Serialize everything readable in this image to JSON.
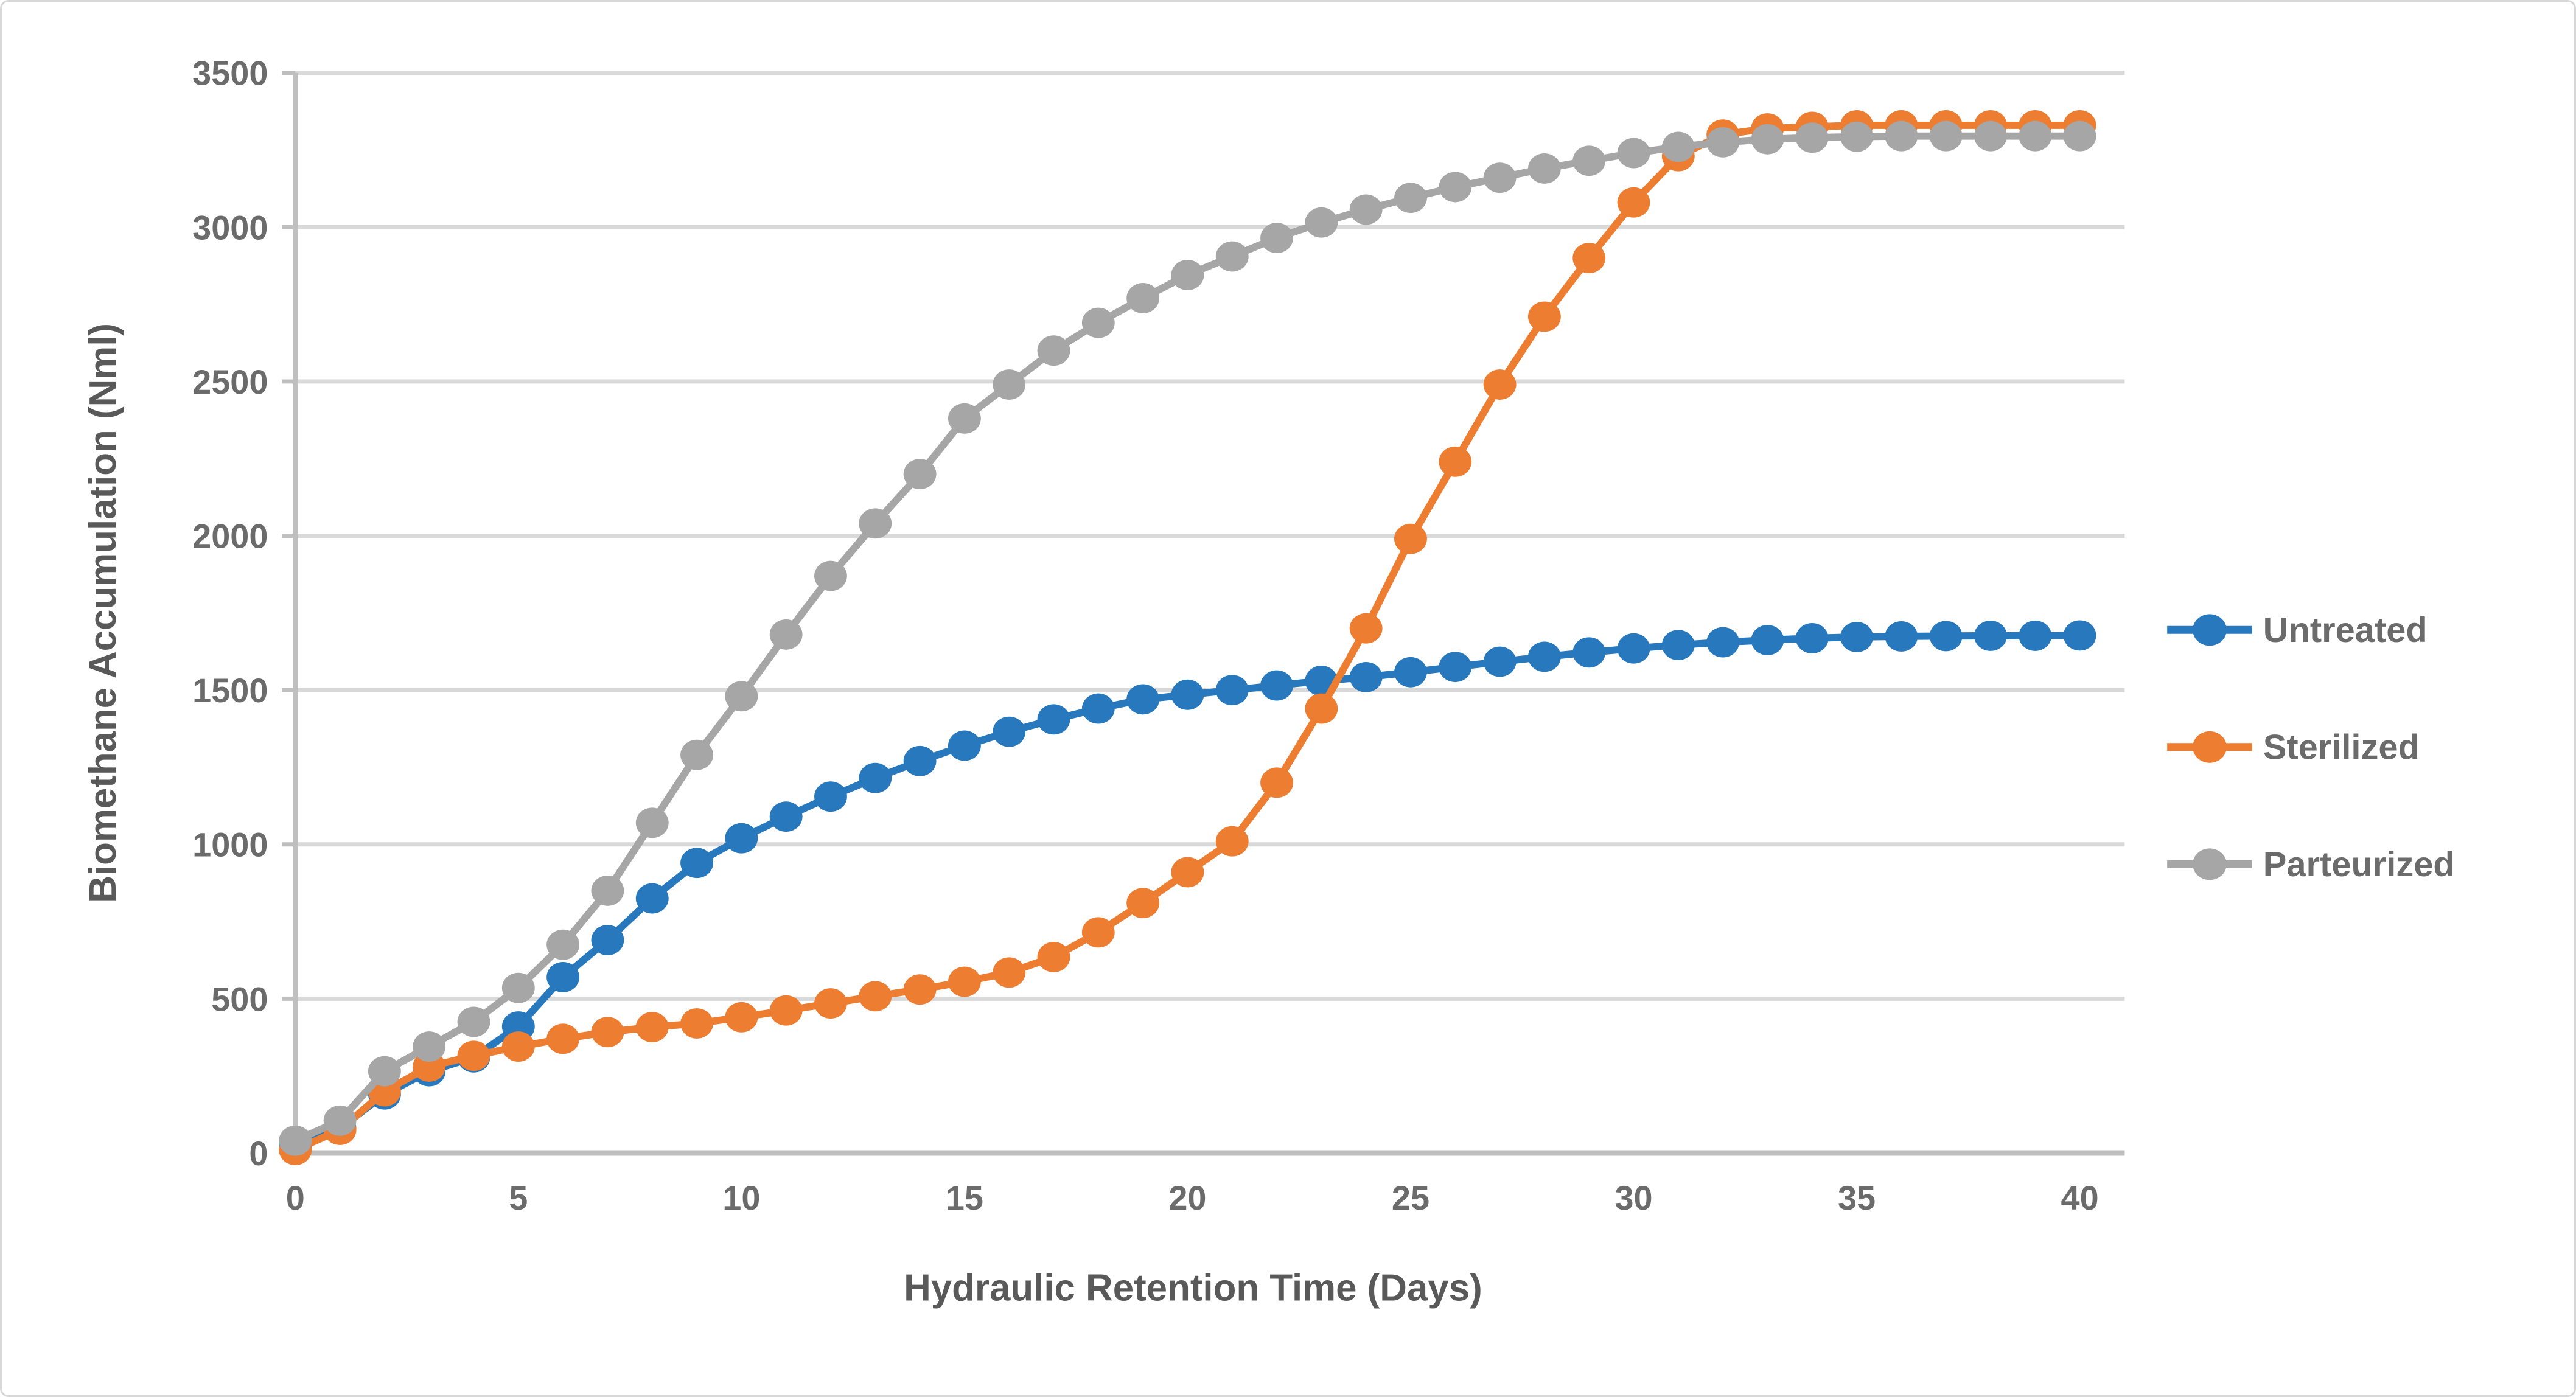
{
  "chart_data": {
    "type": "line",
    "title": "",
    "xlabel": "Hydraulic Retention Time (Days)",
    "ylabel": "Biomethane Accumulation (Nml)",
    "xlim": [
      0,
      41
    ],
    "ylim": [
      0,
      3500
    ],
    "x_ticks": [
      0,
      5,
      10,
      15,
      20,
      25,
      30,
      35,
      40
    ],
    "y_ticks": [
      0,
      500,
      1000,
      1500,
      2000,
      2500,
      3000,
      3500
    ],
    "grid": "horizontal",
    "legend_position": "right",
    "marker": "circle",
    "x": [
      0,
      1,
      2,
      3,
      4,
      5,
      6,
      7,
      8,
      9,
      10,
      11,
      12,
      13,
      14,
      15,
      16,
      17,
      18,
      19,
      20,
      21,
      22,
      23,
      24,
      25,
      26,
      27,
      28,
      29,
      30,
      31,
      32,
      33,
      34,
      35,
      36,
      37,
      38,
      39,
      40
    ],
    "series": [
      {
        "name": "Untreated",
        "color": "#2878BD",
        "values": [
          25,
          80,
          190,
          265,
          310,
          410,
          570,
          690,
          825,
          940,
          1020,
          1090,
          1155,
          1215,
          1270,
          1320,
          1365,
          1405,
          1440,
          1470,
          1485,
          1500,
          1515,
          1530,
          1542,
          1558,
          1575,
          1592,
          1608,
          1622,
          1635,
          1646,
          1655,
          1662,
          1668,
          1672,
          1674,
          1675,
          1676,
          1676,
          1677
        ]
      },
      {
        "name": "Sterilized",
        "color": "#ED7D31",
        "values": [
          10,
          75,
          200,
          280,
          315,
          345,
          370,
          392,
          408,
          420,
          440,
          462,
          485,
          508,
          530,
          555,
          585,
          635,
          715,
          810,
          910,
          1010,
          1200,
          1440,
          1700,
          1990,
          2240,
          2490,
          2710,
          2900,
          3080,
          3230,
          3300,
          3320,
          3325,
          3330,
          3330,
          3330,
          3330,
          3330,
          3330
        ]
      },
      {
        "name": "Parteurized",
        "color": "#A6A6A6",
        "values": [
          40,
          105,
          265,
          345,
          425,
          535,
          675,
          850,
          1070,
          1290,
          1480,
          1680,
          1870,
          2040,
          2200,
          2380,
          2490,
          2600,
          2690,
          2770,
          2845,
          2905,
          2965,
          3015,
          3057,
          3095,
          3130,
          3160,
          3190,
          3215,
          3240,
          3260,
          3275,
          3285,
          3290,
          3293,
          3295,
          3295,
          3295,
          3295,
          3295
        ]
      }
    ],
    "colors": {
      "gridline": "#d9d9d9",
      "axis_line": "#bfbfbf",
      "tick_text": "#6b6b6b",
      "axis_title_text": "#595959",
      "legend_text": "#6b6b6b",
      "background": "#ffffff",
      "border": "#d7d7d7"
    }
  }
}
